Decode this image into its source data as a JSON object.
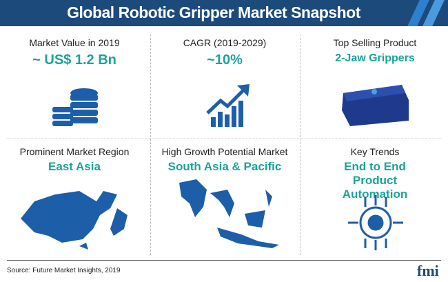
{
  "title": "Global Robotic Gripper Market Snapshot",
  "cells": [
    {
      "label": "Market Value in 2019",
      "value": "~ US$ 1.2 Bn",
      "icon": "coin-stack-icon"
    },
    {
      "label": "CAGR (2019-2029)",
      "value": "~10%",
      "icon": "growth-chart-icon"
    },
    {
      "label": "Top Selling Product",
      "value": "2-Jaw Grippers",
      "icon": "gripper-image"
    },
    {
      "label": "Prominent Market Region",
      "value": "East Asia",
      "icon": "east-asia-map"
    },
    {
      "label": "High Growth Potential Market",
      "value": "South Asia & Pacific",
      "icon": "south-asia-pacific-map"
    },
    {
      "label": "Key Trends",
      "value": "End to End Product Automation",
      "icon": "automation-gear-icon"
    }
  ],
  "footer": {
    "source": "Source: Future Market Insights, 2019",
    "logo": "fmi"
  },
  "colors": {
    "banner": "#1c4a7b",
    "accent": "#1aa39a",
    "icon": "#1d5ea8"
  }
}
